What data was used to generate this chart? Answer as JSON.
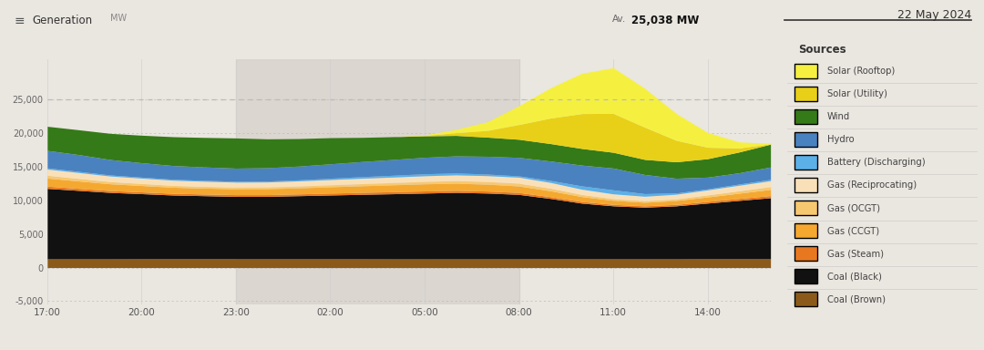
{
  "title_text": "Generation",
  "title_unit": "MW",
  "date_label": "22 May 2024",
  "av_value": "25,038",
  "av_y": 25038,
  "bg_color": "#eae6e0",
  "plot_bg": "#eae6e0",
  "shade_color": "#d5d0ca",
  "ylim": [
    -5500,
    31000
  ],
  "ytick_vals": [
    -5000,
    0,
    5000,
    10000,
    15000,
    20000,
    25000
  ],
  "x_tick_positions": [
    0,
    3,
    6,
    9,
    12,
    15,
    18,
    21
  ],
  "x_tick_labels": [
    "17:00",
    "20:00",
    "23:00",
    "02:00",
    "05:00",
    "08:00",
    "11:00",
    "14:00"
  ],
  "n_points": 24,
  "shade_x1": 6,
  "shade_x2": 15,
  "legend_title": "Sources",
  "legend_order": [
    "Solar (Rooftop)",
    "Solar (Utility)",
    "Wind",
    "Hydro",
    "Battery (Discharging)",
    "Gas (Reciprocating)",
    "Gas (OCGT)",
    "Gas (CCGT)",
    "Gas (Steam)",
    "Coal (Black)",
    "Coal (Brown)"
  ],
  "colors": {
    "Coal (Brown)": "#8B5A1A",
    "Coal (Black)": "#111111",
    "Gas (Steam)": "#E87820",
    "Gas (CCGT)": "#F5A830",
    "Gas (OCGT)": "#F7C870",
    "Gas (Reciprocating)": "#FAE0B8",
    "Battery (Discharging)": "#5BB0E8",
    "Hydro": "#4A82C0",
    "Wind": "#357A18",
    "Solar (Utility)": "#E8D018",
    "Solar (Rooftop)": "#F5F040"
  },
  "stack_order": [
    "Coal (Brown)",
    "Coal (Black)",
    "Gas (Steam)",
    "Gas (CCGT)",
    "Gas (OCGT)",
    "Gas (Reciprocating)",
    "Battery (Discharging)",
    "Hydro",
    "Wind",
    "Solar (Utility)",
    "Solar (Rooftop)"
  ],
  "series": {
    "Coal (Brown)": [
      1300,
      1300,
      1300,
      1310,
      1310,
      1310,
      1310,
      1310,
      1310,
      1310,
      1310,
      1300,
      1300,
      1300,
      1300,
      1300,
      1300,
      1300,
      1300,
      1300,
      1300,
      1310,
      1310,
      1310
    ],
    "Coal (Black)": [
      10500,
      10200,
      9900,
      9700,
      9500,
      9400,
      9300,
      9300,
      9400,
      9500,
      9600,
      9700,
      9800,
      9900,
      9800,
      9600,
      9000,
      8300,
      7900,
      7700,
      7900,
      8300,
      8700,
      9100
    ],
    "Gas (Steam)": [
      330,
      300,
      280,
      265,
      255,
      250,
      250,
      255,
      265,
      280,
      295,
      305,
      310,
      305,
      295,
      285,
      265,
      245,
      215,
      200,
      215,
      250,
      290,
      315
    ],
    "Gas (CCGT)": [
      1200,
      1100,
      1000,
      950,
      900,
      880,
      870,
      875,
      900,
      940,
      980,
      1020,
      1060,
      1060,
      1020,
      970,
      880,
      730,
      600,
      530,
      570,
      660,
      780,
      920
    ],
    "Gas (OCGT)": [
      420,
      380,
      330,
      300,
      275,
      260,
      255,
      260,
      275,
      295,
      315,
      335,
      360,
      380,
      395,
      410,
      375,
      310,
      255,
      220,
      245,
      300,
      360,
      410
    ],
    "Gas (Reciprocating)": [
      920,
      880,
      830,
      800,
      775,
      760,
      750,
      755,
      770,
      790,
      810,
      825,
      850,
      870,
      885,
      900,
      865,
      790,
      715,
      675,
      695,
      755,
      825,
      885
    ],
    "Battery (Discharging)": [
      180,
      170,
      155,
      145,
      135,
      130,
      128,
      135,
      150,
      190,
      235,
      270,
      295,
      275,
      235,
      195,
      290,
      490,
      590,
      390,
      185,
      148,
      175,
      195
    ],
    "Hydro": [
      2600,
      2500,
      2300,
      2150,
      2050,
      2000,
      1950,
      1990,
      2050,
      2150,
      2250,
      2350,
      2450,
      2550,
      2650,
      2750,
      2900,
      3100,
      3250,
      2850,
      2200,
      1750,
      1680,
      1850
    ],
    "Wind": [
      3600,
      3700,
      3900,
      4100,
      4300,
      4400,
      4500,
      4300,
      4100,
      3900,
      3600,
      3400,
      3200,
      3050,
      2850,
      2700,
      2600,
      2480,
      2350,
      2250,
      2450,
      2750,
      3100,
      3400
    ],
    "Solar (Utility)": [
      0,
      0,
      0,
      0,
      0,
      0,
      0,
      0,
      0,
      0,
      0,
      0,
      50,
      400,
      1000,
      2200,
      3800,
      5200,
      5800,
      4800,
      3200,
      1700,
      600,
      50
    ],
    "Solar (Rooftop)": [
      0,
      0,
      0,
      0,
      0,
      0,
      0,
      0,
      0,
      0,
      0,
      0,
      80,
      500,
      1300,
      2800,
      4500,
      6000,
      6800,
      5800,
      4000,
      2200,
      900,
      80
    ]
  }
}
